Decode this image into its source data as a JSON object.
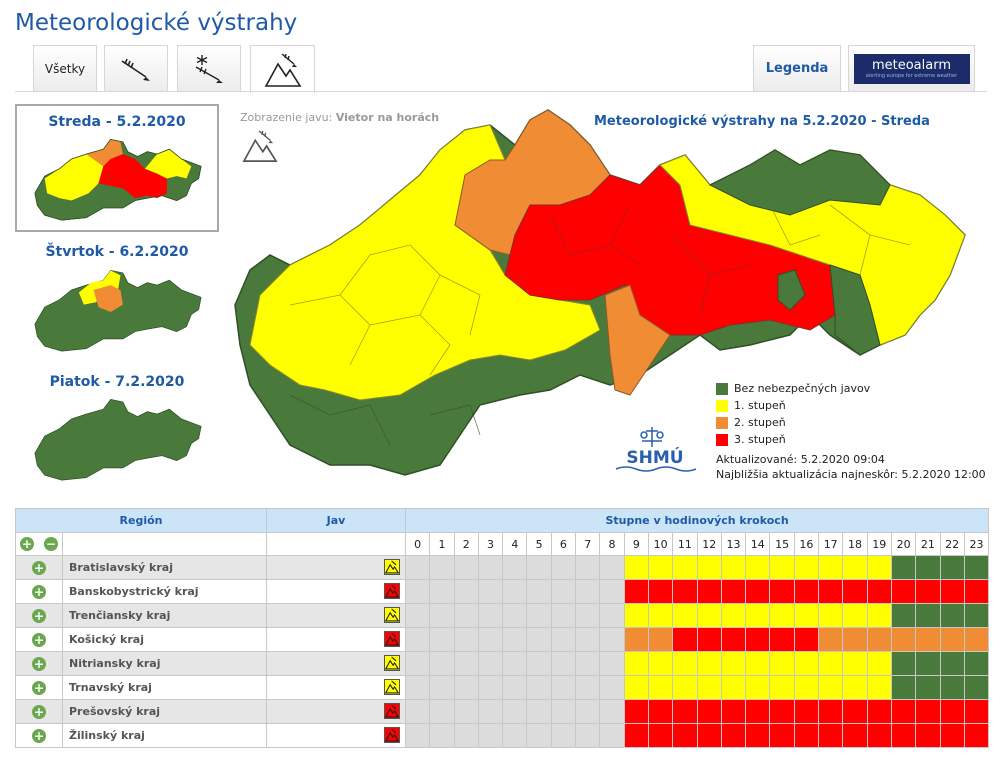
{
  "page": {
    "title": "Meteorologické výstrahy"
  },
  "tabs": {
    "all": "Všetky",
    "wind_icon": "wind-icon",
    "snow_icon": "snow-wind-icon",
    "mountain_icon": "mountain-wind-icon",
    "legend": "Legenda",
    "meteoalarm_name": "meteoalarm",
    "meteoalarm_tagline": "alerting europe for extreme weather"
  },
  "days": [
    {
      "label": "Streda - 5.2.2020",
      "selected": true
    },
    {
      "label": "Štvrtok - 6.2.2020",
      "selected": false
    },
    {
      "label": "Piatok - 7.2.2020",
      "selected": false
    }
  ],
  "display": {
    "prefix": "Zobrazenie javu:",
    "value": "Vietor na horách"
  },
  "map": {
    "title": "Meteorologické výstrahy na 5.2.2020 - Streda"
  },
  "legend": [
    {
      "label": "Bez nebezpečných javov",
      "color": "#4a7a3b"
    },
    {
      "label": "1. stupeň",
      "color": "#ffff00"
    },
    {
      "label": "2. stupeň",
      "color": "#f08c33"
    },
    {
      "label": "3. stupeň",
      "color": "#ff0000"
    }
  ],
  "updates": {
    "updated": "Aktualizované: 5.2.2020 09:04",
    "next": "Najbližšia aktualizácia najneskôr: 5.2.2020 12:00"
  },
  "shmu": {
    "text": "SHMÚ"
  },
  "table": {
    "col_region": "Región",
    "col_jav": "Jav",
    "col_hours": "Stupne v hodinových krokoch",
    "hours": [
      "0",
      "1",
      "2",
      "3",
      "4",
      "5",
      "6",
      "7",
      "8",
      "9",
      "10",
      "11",
      "12",
      "13",
      "14",
      "15",
      "16",
      "17",
      "18",
      "19",
      "20",
      "21",
      "22",
      "23"
    ],
    "rows": [
      {
        "name": "Bratislavský kraj",
        "icon_level": 1,
        "levels": [
          null,
          null,
          null,
          null,
          null,
          null,
          null,
          null,
          null,
          1,
          1,
          1,
          1,
          1,
          1,
          1,
          1,
          1,
          1,
          1,
          0,
          0,
          0,
          0
        ]
      },
      {
        "name": "Banskobystrický kraj",
        "icon_level": 3,
        "levels": [
          null,
          null,
          null,
          null,
          null,
          null,
          null,
          null,
          null,
          3,
          3,
          3,
          3,
          3,
          3,
          3,
          3,
          3,
          3,
          3,
          3,
          3,
          3,
          3
        ]
      },
      {
        "name": "Trenčiansky kraj",
        "icon_level": 1,
        "levels": [
          null,
          null,
          null,
          null,
          null,
          null,
          null,
          null,
          null,
          1,
          1,
          1,
          1,
          1,
          1,
          1,
          1,
          1,
          1,
          1,
          0,
          0,
          0,
          0
        ]
      },
      {
        "name": "Košický kraj",
        "icon_level": 3,
        "levels": [
          null,
          null,
          null,
          null,
          null,
          null,
          null,
          null,
          null,
          2,
          2,
          3,
          3,
          3,
          3,
          3,
          3,
          2,
          2,
          2,
          2,
          2,
          2,
          2
        ]
      },
      {
        "name": "Nitriansky kraj",
        "icon_level": 1,
        "levels": [
          null,
          null,
          null,
          null,
          null,
          null,
          null,
          null,
          null,
          1,
          1,
          1,
          1,
          1,
          1,
          1,
          1,
          1,
          1,
          1,
          0,
          0,
          0,
          0
        ]
      },
      {
        "name": "Trnavský kraj",
        "icon_level": 1,
        "levels": [
          null,
          null,
          null,
          null,
          null,
          null,
          null,
          null,
          null,
          1,
          1,
          1,
          1,
          1,
          1,
          1,
          1,
          1,
          1,
          1,
          0,
          0,
          0,
          0
        ]
      },
      {
        "name": "Prešovský kraj",
        "icon_level": 3,
        "levels": [
          null,
          null,
          null,
          null,
          null,
          null,
          null,
          null,
          null,
          3,
          3,
          3,
          3,
          3,
          3,
          3,
          3,
          3,
          3,
          3,
          3,
          3,
          3,
          3
        ]
      },
      {
        "name": "Žilinský kraj",
        "icon_level": 3,
        "levels": [
          null,
          null,
          null,
          null,
          null,
          null,
          null,
          null,
          null,
          3,
          3,
          3,
          3,
          3,
          3,
          3,
          3,
          3,
          3,
          3,
          3,
          3,
          3,
          3
        ]
      }
    ]
  },
  "colors": {
    "level0": "#4a7a3b",
    "level1": "#ffff00",
    "level2": "#f08c33",
    "level3": "#ff0000",
    "none": "#dcdcdc"
  }
}
